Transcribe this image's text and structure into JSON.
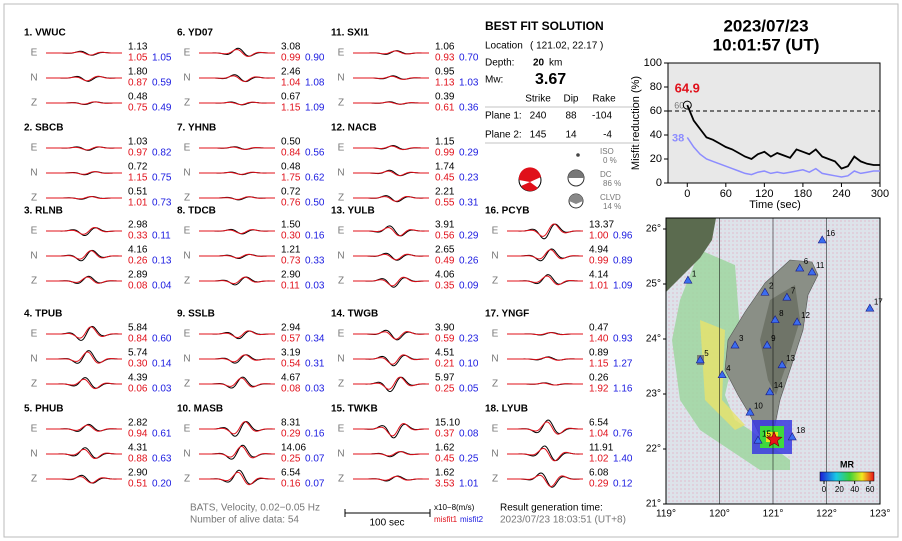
{
  "stations": [
    {
      "name": "1.  VWUC",
      "traces": [
        [
          "E",
          "1.13",
          "1.05",
          "1.05"
        ],
        [
          "N",
          "1.80",
          "0.87",
          "0.59"
        ],
        [
          "Z",
          "0.48",
          "0.75",
          "0.49"
        ]
      ]
    },
    {
      "name": "2.  SBCB",
      "traces": [
        [
          "E",
          "1.03",
          "0.97",
          "0.82"
        ],
        [
          "N",
          "0.72",
          "1.15",
          "0.75"
        ],
        [
          "Z",
          "0.51",
          "1.01",
          "0.73"
        ]
      ]
    },
    {
      "name": "3.  RLNB",
      "traces": [
        [
          "E",
          "2.98",
          "0.33",
          "0.11"
        ],
        [
          "N",
          "4.16",
          "0.26",
          "0.13"
        ],
        [
          "Z",
          "2.89",
          "0.08",
          "0.04"
        ]
      ]
    },
    {
      "name": "4.  TPUB",
      "traces": [
        [
          "E",
          "5.84",
          "0.84",
          "0.60"
        ],
        [
          "N",
          "5.74",
          "0.30",
          "0.14"
        ],
        [
          "Z",
          "4.39",
          "0.06",
          "0.03"
        ]
      ]
    },
    {
      "name": "5.  PHUB",
      "traces": [
        [
          "E",
          "2.82",
          "0.94",
          "0.61"
        ],
        [
          "N",
          "4.31",
          "0.88",
          "0.63"
        ],
        [
          "Z",
          "2.90",
          "0.51",
          "0.20"
        ]
      ]
    },
    {
      "name": "6.  YD07",
      "traces": [
        [
          "E",
          "3.08",
          "0.99",
          "0.90"
        ],
        [
          "N",
          "2.46",
          "1.04",
          "1.08"
        ],
        [
          "Z",
          "0.67",
          "1.15",
          "1.09"
        ]
      ]
    },
    {
      "name": "7.  YHNB",
      "traces": [
        [
          "E",
          "0.50",
          "0.84",
          "0.56"
        ],
        [
          "N",
          "0.48",
          "1.75",
          "0.62"
        ],
        [
          "Z",
          "0.72",
          "0.76",
          "0.50"
        ]
      ]
    },
    {
      "name": "8.  TDCB",
      "traces": [
        [
          "E",
          "1.50",
          "0.30",
          "0.16"
        ],
        [
          "N",
          "1.21",
          "0.73",
          "0.33"
        ],
        [
          "Z",
          "2.90",
          "0.11",
          "0.03"
        ]
      ]
    },
    {
      "name": "9.  SSLB",
      "traces": [
        [
          "E",
          "2.94",
          "0.57",
          "0.34"
        ],
        [
          "N",
          "3.19",
          "0.54",
          "0.31"
        ],
        [
          "Z",
          "4.67",
          "0.08",
          "0.03"
        ]
      ]
    },
    {
      "name": "10. MASB",
      "traces": [
        [
          "E",
          "8.31",
          "0.29",
          "0.16"
        ],
        [
          "N",
          "14.06",
          "0.25",
          "0.07"
        ],
        [
          "Z",
          "6.54",
          "0.16",
          "0.07"
        ]
      ]
    },
    {
      "name": "11. SXI1",
      "traces": [
        [
          "E",
          "1.06",
          "0.93",
          "0.70"
        ],
        [
          "N",
          "0.95",
          "1.13",
          "1.03"
        ],
        [
          "Z",
          "0.39",
          "0.61",
          "0.36"
        ]
      ]
    },
    {
      "name": "12. NACB",
      "traces": [
        [
          "E",
          "1.15",
          "0.99",
          "0.29"
        ],
        [
          "N",
          "1.74",
          "0.45",
          "0.23"
        ],
        [
          "Z",
          "2.21",
          "0.55",
          "0.31"
        ]
      ]
    },
    {
      "name": "13. YULB",
      "traces": [
        [
          "E",
          "3.91",
          "0.56",
          "0.29"
        ],
        [
          "N",
          "2.65",
          "0.49",
          "0.26"
        ],
        [
          "Z",
          "4.06",
          "0.35",
          "0.09"
        ]
      ]
    },
    {
      "name": "14. TWGB",
      "traces": [
        [
          "E",
          "3.90",
          "0.59",
          "0.23"
        ],
        [
          "N",
          "4.51",
          "0.21",
          "0.10"
        ],
        [
          "Z",
          "5.97",
          "0.25",
          "0.05"
        ]
      ]
    },
    {
      "name": "15. TWKB",
      "traces": [
        [
          "E",
          "15.10",
          "0.37",
          "0.08"
        ],
        [
          "N",
          "1.62",
          "0.45",
          "0.25"
        ],
        [
          "Z",
          "1.62",
          "3.53",
          "1.01"
        ]
      ]
    },
    {
      "name": "16. PCYB",
      "traces": [
        [
          "E",
          "13.37",
          "1.00",
          "0.96"
        ],
        [
          "N",
          "4.94",
          "0.99",
          "0.89"
        ],
        [
          "Z",
          "4.14",
          "1.01",
          "1.09"
        ]
      ]
    },
    {
      "name": "17. YNGF",
      "traces": [
        [
          "E",
          "0.47",
          "1.40",
          "0.93"
        ],
        [
          "N",
          "0.89",
          "1.15",
          "1.27"
        ],
        [
          "Z",
          "0.26",
          "1.92",
          "1.16"
        ]
      ]
    },
    {
      "name": "18. LYUB",
      "traces": [
        [
          "E",
          "6.54",
          "1.04",
          "0.76"
        ],
        [
          "N",
          "11.91",
          "1.02",
          "1.40"
        ],
        [
          "Z",
          "6.08",
          "0.29",
          "0.12"
        ]
      ]
    }
  ],
  "solution": {
    "title": "BEST FIT SOLUTION",
    "location_label": "Location",
    "location": "( 121.02,  22.17 )",
    "depth_label": "Depth:",
    "depth": 20,
    "depth_unit": "km",
    "mw_label": "Mw:",
    "mw": 3.67,
    "headers": [
      "Strike",
      "Dip",
      "Rake"
    ],
    "planes": [
      {
        "label": "Plane 1:",
        "strike": 240,
        "dip": 88,
        "rake": -104
      },
      {
        "label": "Plane 2:",
        "strike": 145,
        "dip": 14,
        "rake": -4
      }
    ],
    "components": [
      {
        "name": "ISO",
        "value": "0 %"
      },
      {
        "name": "DC",
        "value": "86 %"
      },
      {
        "name": "CLVD",
        "value": "14 %"
      }
    ]
  },
  "event_date": "2023/07/23",
  "event_time": "10:01:57  (UT)",
  "misfit_plot": {
    "type": "line",
    "ylabel": "Misfit reduction (%)",
    "xlabel": "Time (sec)",
    "xlim": [
      -30,
      300
    ],
    "ylim": [
      0,
      100
    ],
    "xticks": [
      0,
      60,
      120,
      180,
      240,
      300
    ],
    "yticks": [
      0,
      20,
      40,
      60,
      80,
      100
    ],
    "x": [
      0,
      10,
      20,
      30,
      40,
      50,
      60,
      70,
      80,
      90,
      100,
      110,
      120,
      130,
      140,
      150,
      160,
      170,
      180,
      190,
      200,
      210,
      220,
      230,
      240,
      250,
      260,
      270,
      280,
      290,
      300
    ],
    "series": [
      {
        "color": "#000000",
        "values": [
          64.9,
          52,
          45,
          38,
          36,
          33,
          30,
          28,
          25,
          22,
          20,
          24,
          26,
          22,
          25,
          23,
          21,
          28,
          26,
          24,
          28,
          22,
          20,
          18,
          12,
          14,
          22,
          18,
          16,
          15,
          15
        ]
      },
      {
        "color": "#8c8cff",
        "values": [
          38,
          30,
          24,
          20,
          18,
          16,
          14,
          12,
          10,
          8,
          7,
          9,
          10,
          8,
          9,
          8,
          9,
          10,
          11,
          9,
          12,
          8,
          7,
          6,
          5,
          6,
          10,
          8,
          9,
          10,
          10
        ]
      }
    ],
    "best": {
      "value": 64.9,
      "label": "64.9"
    },
    "blue_start_label": "38",
    "threshold": {
      "value": 60,
      "label": "60"
    }
  },
  "map": {
    "xlim": [
      119,
      123
    ],
    "ylim": [
      21,
      26.2
    ],
    "xticks": [
      {
        "value": 119,
        "label": "119°"
      },
      {
        "value": 120,
        "label": "120°"
      },
      {
        "value": 121,
        "label": "121°"
      },
      {
        "value": 122,
        "label": "122°"
      },
      {
        "value": 123,
        "label": "123°"
      }
    ],
    "yticks": [
      {
        "value": 21,
        "label": "21°"
      },
      {
        "value": 22,
        "label": "22°"
      },
      {
        "value": 23,
        "label": "23°"
      },
      {
        "value": 24,
        "label": "24°"
      },
      {
        "value": 25,
        "label": "25°"
      },
      {
        "value": 26,
        "label": "26°"
      }
    ],
    "stations": [
      {
        "label": "1",
        "lon": 119.41,
        "lat": 25.07
      },
      {
        "label": "2",
        "lon": 120.85,
        "lat": 24.85
      },
      {
        "label": "3",
        "lon": 120.29,
        "lat": 23.89
      },
      {
        "label": "4",
        "lon": 120.05,
        "lat": 23.35
      },
      {
        "label": "5",
        "lon": 119.64,
        "lat": 23.62
      },
      {
        "label": "6",
        "lon": 121.5,
        "lat": 25.29
      },
      {
        "label": "7",
        "lon": 121.26,
        "lat": 24.76
      },
      {
        "label": "8",
        "lon": 121.04,
        "lat": 24.35
      },
      {
        "label": "9",
        "lon": 120.89,
        "lat": 23.89
      },
      {
        "label": "10",
        "lon": 120.57,
        "lat": 22.67
      },
      {
        "label": "11",
        "lon": 121.73,
        "lat": 25.22
      },
      {
        "label": "12",
        "lon": 121.45,
        "lat": 24.31
      },
      {
        "label": "13",
        "lon": 121.17,
        "lat": 23.53
      },
      {
        "label": "14",
        "lon": 120.94,
        "lat": 23.04
      },
      {
        "label": "15",
        "lon": 120.72,
        "lat": 22.16
      },
      {
        "label": "16",
        "lon": 121.92,
        "lat": 25.8
      },
      {
        "label": "17",
        "lon": 122.81,
        "lat": 24.56
      },
      {
        "label": "18",
        "lon": 121.36,
        "lat": 22.22
      }
    ],
    "epicenter": {
      "lon": 121.02,
      "lat": 22.17
    },
    "colorbar": {
      "title": "MR",
      "ticks": [
        0,
        20,
        40,
        60
      ]
    }
  },
  "footer": {
    "method": "BATS, Velocity, 0.02−0.05 Hz",
    "alive": "Number of alive data: 54",
    "scale": "100 sec",
    "units": "x10−8(m/s)",
    "misfit1": "misfit1",
    "misfit2": "misfit2",
    "result_label": "Result generation time:",
    "result_time": "2023/07/23 18:03:51 (UT+8)"
  }
}
